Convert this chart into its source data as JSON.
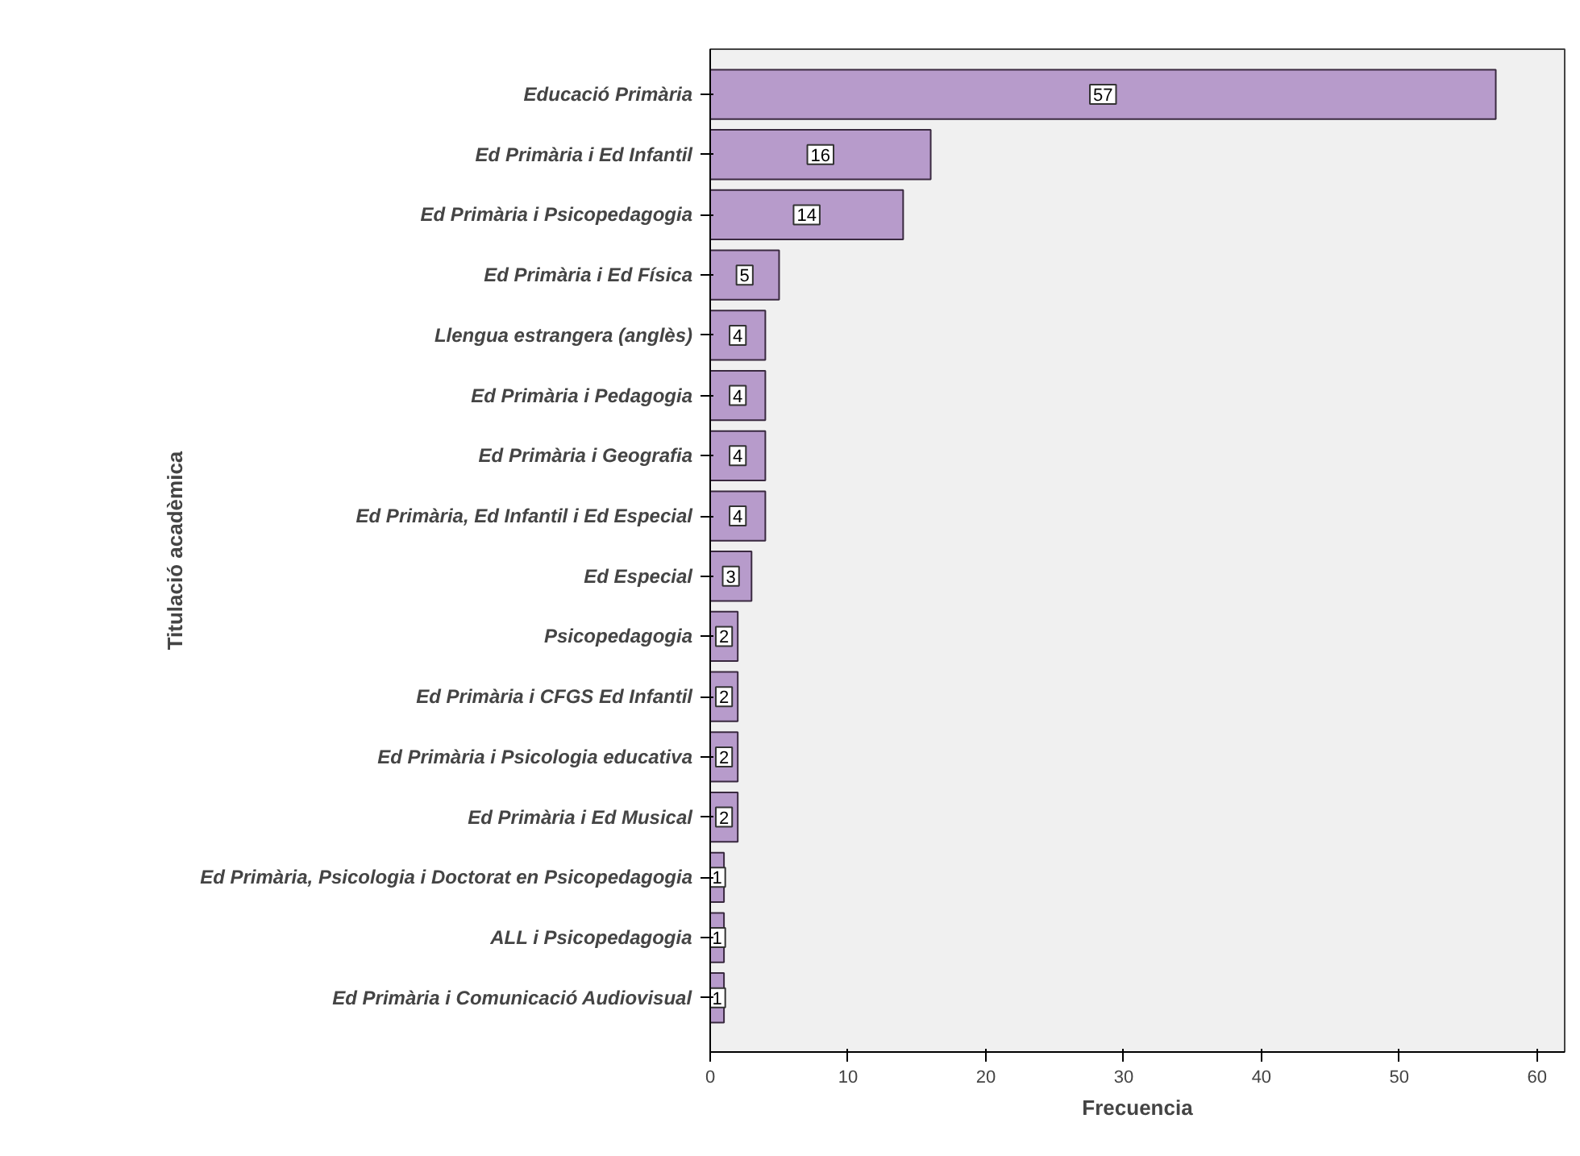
{
  "chart_data": {
    "type": "bar",
    "orientation": "horizontal",
    "xlabel": "Frecuencia",
    "ylabel": "Titulació acadèmica",
    "categories": [
      "Educació Primària",
      "Ed Primària i Ed Infantil",
      "Ed Primària i Psicopedagogia",
      "Ed Primària i Ed Física",
      "Llengua estrangera (anglès)",
      "Ed Primària i Pedagogia",
      "Ed Primària i Geografia",
      "Ed Primària, Ed Infantil i Ed Especial",
      "Ed Especial",
      "Psicopedagogia",
      "Ed Primària i CFGS Ed Infantil",
      "Ed Primària i Psicologia educativa",
      "Ed Primària i Ed Musical",
      "Ed Primària, Psicologia i Doctorat en Psicopedagogia",
      "ALL i Psicopedagogia",
      "Ed Primària i Comunicació Audiovisual"
    ],
    "values": [
      57,
      16,
      14,
      5,
      4,
      4,
      4,
      4,
      3,
      2,
      2,
      2,
      2,
      1,
      1,
      1
    ],
    "color": "#b79bcb",
    "data_labels": true,
    "xlim": [
      0,
      62
    ],
    "xticks": [
      0,
      10,
      20,
      30,
      40,
      50,
      60
    ],
    "grid": false
  }
}
